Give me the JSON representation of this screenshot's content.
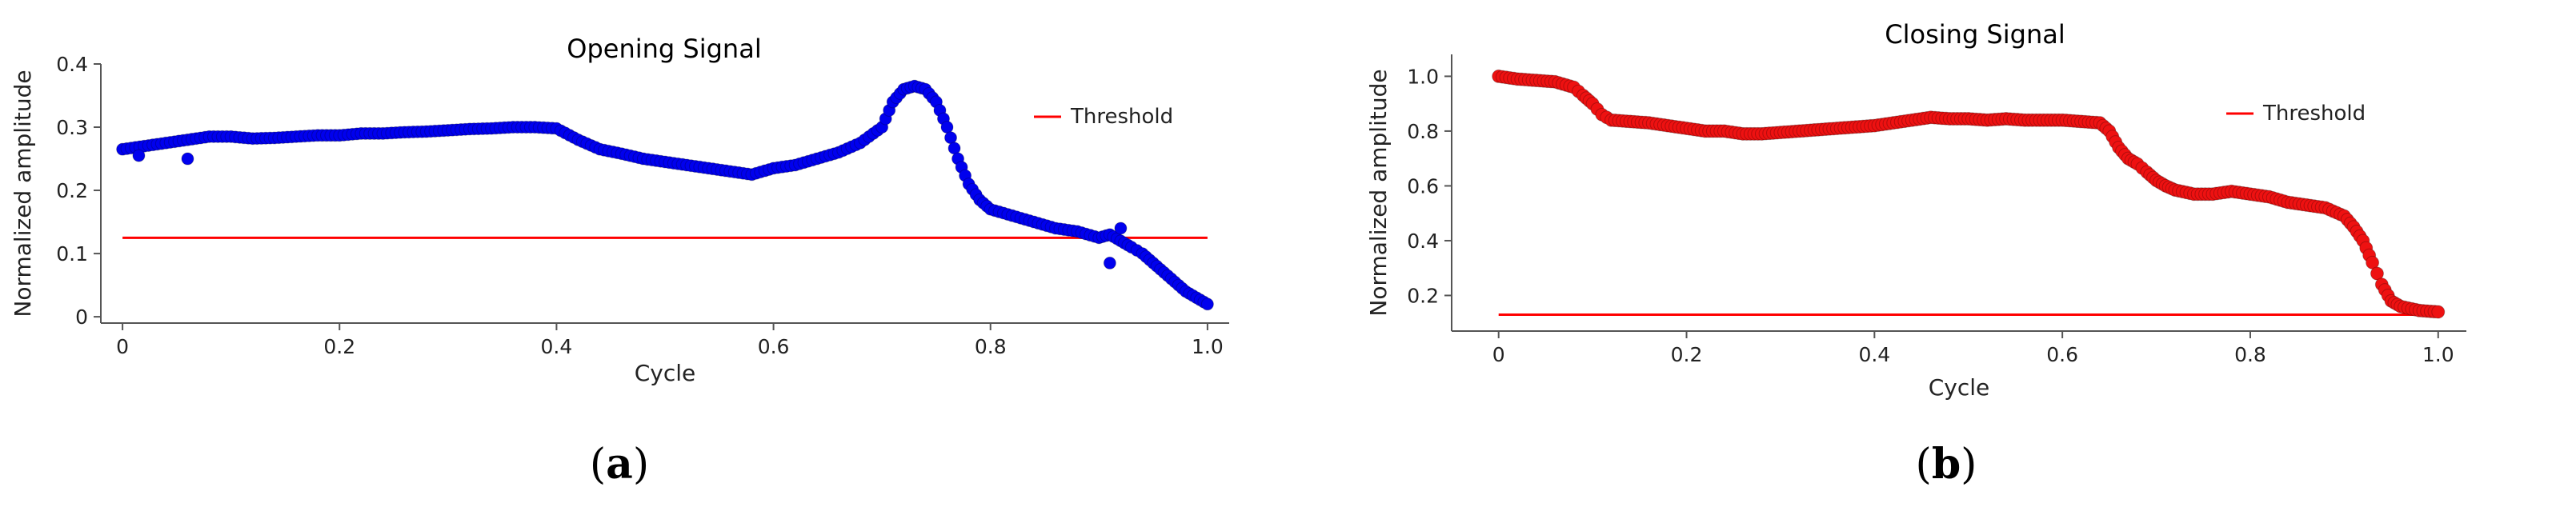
{
  "chart_data": [
    {
      "type": "scatter",
      "caption_letter": "a",
      "title": "Opening Signal",
      "xlabel": "Cycle",
      "ylabel": "Normalized amplitude",
      "xlim": [
        -0.02,
        1.02
      ],
      "ylim": [
        -0.01,
        0.4
      ],
      "xticks": [
        "0",
        "0.2",
        "0.4",
        "0.6",
        "0.8",
        "1.0"
      ],
      "xtick_values": [
        0,
        0.2,
        0.4,
        0.6,
        0.8,
        1.0
      ],
      "yticks": [
        "0",
        "0.1",
        "0.2",
        "0.3",
        "0.4"
      ],
      "ytick_values": [
        0,
        0.1,
        0.2,
        0.3,
        0.4
      ],
      "legend": {
        "label": "Threshold",
        "position": "top-right"
      },
      "threshold": {
        "y": 0.125,
        "x": [
          0,
          1.0
        ],
        "color": "#ff0000"
      },
      "point_color": "#0000ee",
      "points": {
        "x": [
          0,
          0.02,
          0.04,
          0.06,
          0.08,
          0.1,
          0.12,
          0.14,
          0.16,
          0.18,
          0.2,
          0.22,
          0.24,
          0.26,
          0.28,
          0.3,
          0.32,
          0.34,
          0.36,
          0.38,
          0.4,
          0.42,
          0.44,
          0.46,
          0.48,
          0.5,
          0.52,
          0.54,
          0.56,
          0.58,
          0.6,
          0.62,
          0.64,
          0.66,
          0.68,
          0.7,
          0.71,
          0.72,
          0.73,
          0.74,
          0.75,
          0.76,
          0.77,
          0.78,
          0.79,
          0.8,
          0.82,
          0.84,
          0.86,
          0.88,
          0.9,
          0.91,
          0.92,
          0.93,
          0.94,
          0.95,
          0.96,
          0.97,
          0.98,
          0.99,
          1.0
        ],
        "y": [
          0.265,
          0.27,
          0.275,
          0.28,
          0.285,
          0.285,
          0.282,
          0.283,
          0.285,
          0.287,
          0.287,
          0.29,
          0.29,
          0.292,
          0.293,
          0.295,
          0.297,
          0.298,
          0.3,
          0.3,
          0.298,
          0.28,
          0.265,
          0.258,
          0.25,
          0.245,
          0.24,
          0.235,
          0.23,
          0.225,
          0.235,
          0.24,
          0.25,
          0.26,
          0.275,
          0.3,
          0.34,
          0.36,
          0.365,
          0.36,
          0.34,
          0.3,
          0.25,
          0.21,
          0.185,
          0.17,
          0.16,
          0.15,
          0.14,
          0.135,
          0.125,
          0.13,
          0.12,
          0.11,
          0.1,
          0.085,
          0.07,
          0.055,
          0.04,
          0.03,
          0.02
        ]
      },
      "outliers": {
        "x": [
          0.015,
          0.06,
          0.91,
          0.92
        ],
        "y": [
          0.255,
          0.25,
          0.085,
          0.14
        ]
      }
    },
    {
      "type": "scatter",
      "caption_letter": "b",
      "title": "Closing Signal",
      "xlabel": "Cycle",
      "ylabel": "Normalized amplitude",
      "xlim": [
        -0.05,
        1.03
      ],
      "ylim": [
        0.07,
        1.08
      ],
      "xticks": [
        "0",
        "0.2",
        "0.4",
        "0.6",
        "0.8",
        "1.0"
      ],
      "xtick_values": [
        0,
        0.2,
        0.4,
        0.6,
        0.8,
        1.0
      ],
      "yticks": [
        "0.2",
        "0.4",
        "0.6",
        "0.8",
        "1.0"
      ],
      "ytick_values": [
        0.2,
        0.4,
        0.6,
        0.8,
        1.0
      ],
      "legend": {
        "label": "Threshold",
        "position": "top-right"
      },
      "threshold": {
        "y": 0.13,
        "x": [
          0,
          1.0
        ],
        "color": "#ff0000"
      },
      "point_color": "#ee1111",
      "points": {
        "x": [
          0,
          0.02,
          0.04,
          0.06,
          0.08,
          0.09,
          0.1,
          0.11,
          0.12,
          0.14,
          0.16,
          0.18,
          0.2,
          0.22,
          0.24,
          0.26,
          0.28,
          0.3,
          0.32,
          0.34,
          0.36,
          0.38,
          0.4,
          0.42,
          0.44,
          0.46,
          0.48,
          0.5,
          0.52,
          0.54,
          0.56,
          0.58,
          0.6,
          0.62,
          0.64,
          0.65,
          0.66,
          0.67,
          0.68,
          0.69,
          0.7,
          0.71,
          0.72,
          0.74,
          0.76,
          0.78,
          0.8,
          0.82,
          0.84,
          0.86,
          0.88,
          0.9,
          0.91,
          0.92,
          0.93,
          0.94,
          0.95,
          0.96,
          0.98,
          1.0
        ],
        "y": [
          1.0,
          0.99,
          0.985,
          0.98,
          0.96,
          0.93,
          0.9,
          0.86,
          0.84,
          0.835,
          0.83,
          0.82,
          0.81,
          0.8,
          0.8,
          0.79,
          0.79,
          0.795,
          0.8,
          0.805,
          0.81,
          0.815,
          0.82,
          0.83,
          0.84,
          0.85,
          0.845,
          0.845,
          0.84,
          0.845,
          0.84,
          0.84,
          0.84,
          0.835,
          0.83,
          0.8,
          0.74,
          0.7,
          0.68,
          0.65,
          0.62,
          0.6,
          0.585,
          0.57,
          0.57,
          0.58,
          0.57,
          0.56,
          0.54,
          0.53,
          0.52,
          0.49,
          0.45,
          0.4,
          0.32,
          0.24,
          0.18,
          0.16,
          0.145,
          0.14
        ]
      }
    }
  ]
}
